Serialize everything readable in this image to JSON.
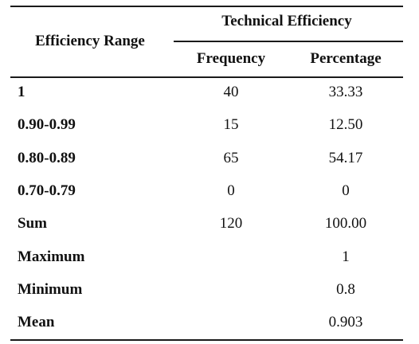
{
  "table": {
    "header": {
      "range_label": "Efficiency Range",
      "group_label": "Technical Efficiency",
      "frequency_label": "Frequency",
      "percentage_label": "Percentage"
    },
    "rows": [
      {
        "range": "1",
        "frequency": "40",
        "percentage": "33.33"
      },
      {
        "range": "0.90-0.99",
        "frequency": "15",
        "percentage": "12.50"
      },
      {
        "range": "0.80-0.89",
        "frequency": "65",
        "percentage": "54.17"
      },
      {
        "range": "0.70-0.79",
        "frequency": "0",
        "percentage": "0"
      },
      {
        "range": "Sum",
        "frequency": "120",
        "percentage": "100.00"
      },
      {
        "range": "Maximum",
        "frequency": "",
        "percentage": "1"
      },
      {
        "range": "Minimum",
        "frequency": "",
        "percentage": "0.8"
      },
      {
        "range": "Mean",
        "frequency": "",
        "percentage": "0.903"
      }
    ]
  }
}
